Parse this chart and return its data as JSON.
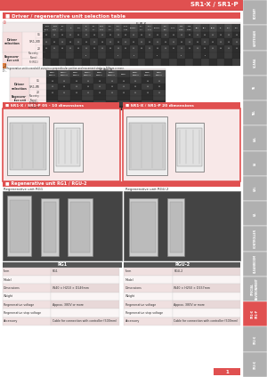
{
  "bg_color": "#ffffff",
  "main_bg": "#ffffff",
  "page_bg": "#f5f5f5",
  "red_color": "#e05050",
  "dark_red": "#cc3333",
  "table_dark1": "#3a3a3a",
  "table_dark2": "#4a4a4a",
  "table_light1": "#f0e8e8",
  "table_light2": "#faf5f5",
  "table_pink1": "#f5dede",
  "table_pink2": "#faeaea",
  "cell_bg1": "#2d2d2d",
  "cell_bg2": "#3d3d3d",
  "cell_content": "#888888",
  "right_bar_bg": "#b0b0b0",
  "right_bar_active": "#e05050",
  "top_stripe": "#e05050",
  "title_color": "#e05050",
  "text_dark": "#333333",
  "text_white": "#ffffff",
  "text_gray": "#888888",
  "border_color": "#cccccc",
  "section_header_bg": "#e05050",
  "dim_box_bg": "#f8e8e8",
  "dim_box_border": "#e05050",
  "regen_box_bg": "#3a3a3a",
  "spec_label_bg": "#f0e0e0",
  "spec_val_bg": "#faf5f5",
  "spec_header_bg": "#555555",
  "page_number_bg": "#e05050",
  "tab_labels": [
    "ROTARY",
    "CARTESIAN",
    "SCARA",
    "YA",
    "YAL",
    "LAL",
    "LA",
    "CAL",
    "CA",
    "CONTROLLER",
    "CLEANROOM",
    "SPECIAL\nENVIRONMENT",
    "SR1-X\nSR1-P",
    "SR2-X",
    "SR3-X"
  ],
  "tab_active_idx": 12,
  "section1_title": "Driver / regenerative unit selection table",
  "flip_x_label": "FLIP-X",
  "flip_rb_label": "FLIPR-B",
  "table1_cols": [
    "T4LH/C4LH",
    "T5LH/C5LH",
    "T6L/C6L",
    "T9",
    "T9H",
    "F8/C8",
    "F8L/C8L",
    "F8LH/C8LH",
    "F10/C10",
    "F14/C14",
    "F14H/C14H",
    "GF14XL",
    "F17/C17",
    "F17L/C17L",
    "GF17XL",
    "F20/C20",
    "F20N",
    "N15/N15D",
    "N18/N18D",
    "B10",
    "B14",
    "B14H",
    "R5",
    "R10",
    "R20"
  ],
  "table1_driver_rows": [
    "05",
    "10",
    "20"
  ],
  "table1_regen_rows": [
    "No entry\n(None)",
    "R (RG1)"
  ],
  "table2_cols": [
    "MFP1L/MFP1LH",
    "MFP1SL/MFP1SLH",
    "MFP2L/MFP2LH",
    "MFP2SL/MFP2SLH",
    "MFP3L/MFP3LH",
    "MFP3SL/MFP3SLH",
    "MFP4L",
    "MFP5L/MFP5LH",
    "MFP6L/MFP6LH",
    "MFP7L/MFP7LH"
  ],
  "table2_driver_rows": [
    "05",
    "10",
    "20"
  ],
  "table2_regen_rows": [
    "No entry\n(None)",
    "R (RG1)",
    "R (RGU-2)"
  ],
  "section2_title1": "SR1-X / SR1-P 05 - 10 dimensions",
  "section2_title2": "SR1-X / SR1-P 20 dimensions",
  "section3_title": "Regenerative unit RG1 / RGU-2",
  "regen_sub1": "Regenerative unit RG1",
  "regen_sub2": "Regenerative unit RGU-2",
  "spec1_title": "RG1",
  "spec1_rows": [
    [
      "Item",
      "RG1"
    ],
    [
      "Model",
      ""
    ],
    [
      "Dimensions",
      "W40 × H210 × D146mm"
    ],
    [
      "Weight",
      ""
    ],
    [
      "Regenerative voltage",
      "Approx. 380V or more"
    ],
    [
      "Regenerative stop voltage",
      ""
    ],
    [
      "Accessory",
      "Cable for connection with controller (500mm)"
    ]
  ],
  "spec2_title": "RGU-2",
  "spec2_rows": [
    [
      "Item",
      "RGU-2"
    ],
    [
      "Model",
      ""
    ],
    [
      "Dimensions",
      "W40 × H250 × D157mm"
    ],
    [
      "Weight",
      ""
    ],
    [
      "Regenerative voltage",
      "Approx. 380V or more"
    ],
    [
      "Regenerative stop voltage",
      ""
    ],
    [
      "Accessory",
      "Cable for connection with controller (500mm)"
    ]
  ],
  "page_num": "1",
  "sr1_label": "SR1-X / SR1-P"
}
